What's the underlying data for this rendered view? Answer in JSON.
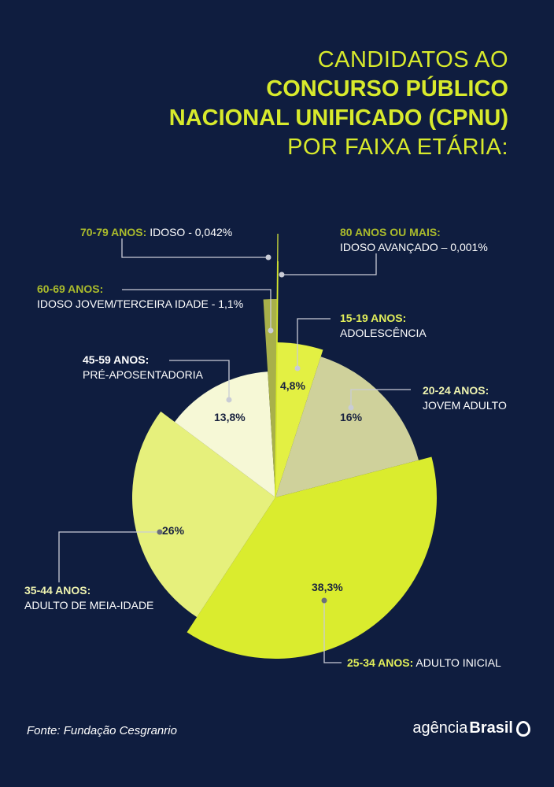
{
  "title": {
    "line1": "CANDIDATOS AO",
    "line2": "CONCURSO PÚBLICO",
    "line3": "NACIONAL UNIFICADO (CPNU)",
    "line4": "POR FAIXA ETÁRIA:"
  },
  "chart_data": {
    "type": "pie",
    "variant": "variable-radius",
    "slices": [
      {
        "age": "15-19 ANOS:",
        "group": "ADOLESCÊNCIA",
        "value": 4.8,
        "label": "4,8%",
        "color": "#e3f043"
      },
      {
        "age": "20-24 ANOS:",
        "group": "JOVEM ADULTO",
        "value": 16,
        "label": "16%",
        "color": "#cfd19b"
      },
      {
        "age": "25-34 ANOS:",
        "group": "ADULTO INICIAL",
        "value": 38.3,
        "label": "38,3%",
        "color": "#daec2e"
      },
      {
        "age": "35-44 ANOS:",
        "group": "ADULTO DE MEIA-IDADE",
        "value": 26,
        "label": "26%",
        "color": "#e6f07c"
      },
      {
        "age": "45-59 ANOS:",
        "group": "PRÉ-APOSENTADORIA",
        "value": 13.8,
        "label": "13,8%",
        "color": "#f6f8d6"
      },
      {
        "age": "60-69 ANOS:",
        "group": "IDOSO JOVEM/TERCEIRA IDADE - 1,1%",
        "value": 1.1,
        "label": "1,1%",
        "color": "#a8b04a"
      },
      {
        "age": "70-79 ANOS:",
        "group": "IDOSO -  0,042%",
        "value": 0.042,
        "label": "0,042%",
        "color": "#b9c83a"
      },
      {
        "age": "80 ANOS OU MAIS:",
        "group": "IDOSO AVANÇADO – 0,001%",
        "value": 0.001,
        "label": "0,001%",
        "color": "#d8ea2c"
      }
    ]
  },
  "footer": {
    "source": "Fonte: Fundação Cesgranrio",
    "logo_light": "agência",
    "logo_bold": "Brasil"
  },
  "colors": {
    "background": "#0f1d3f",
    "accent": "#d8ea2c"
  }
}
